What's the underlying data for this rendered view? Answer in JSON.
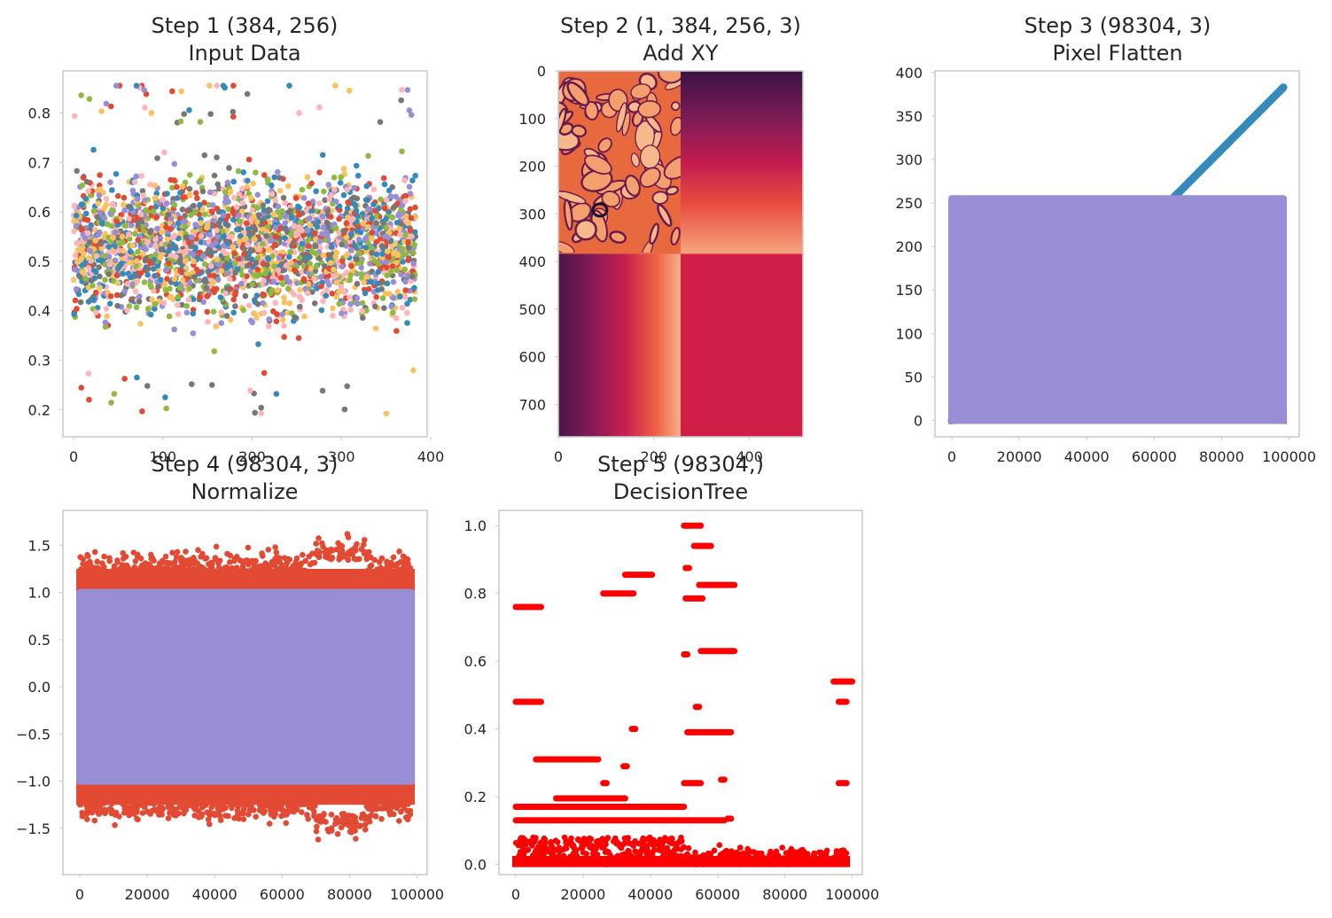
{
  "figure": {
    "background": "#ffffff",
    "frame_color": "#cccccc"
  },
  "chart_data": [
    {
      "id": "p1",
      "type": "scatter",
      "title_line1": "Step 1 (384, 256)",
      "title_line2": "Input Data",
      "xlabel": "",
      "ylabel": "",
      "xlim": [
        -12,
        396
      ],
      "ylim": [
        0.145,
        0.885
      ],
      "xticks": [
        0,
        100,
        200,
        300,
        400
      ],
      "xtick_labels": [
        "0",
        "100",
        "200",
        "300",
        "400"
      ],
      "yticks": [
        0.2,
        0.3,
        0.4,
        0.5,
        0.6,
        0.7,
        0.8
      ],
      "ytick_labels": [
        "0.2",
        "0.3",
        "0.4",
        "0.5",
        "0.6",
        "0.7",
        "0.8"
      ],
      "grid": false,
      "series_colors": [
        "#E24A33",
        "#348ABD",
        "#988ED5",
        "#777777",
        "#FBC15E",
        "#8EBA42",
        "#FFB5B8"
      ],
      "x_range": [
        0,
        383
      ],
      "band_center": 0.53,
      "band_halfwidth": 0.22,
      "min_value": 0.18,
      "max_value": 0.855
    },
    {
      "id": "p2",
      "type": "heatmap",
      "title_line1": "Step 2 (1, 384, 256, 3)",
      "title_line2": "Add XY",
      "xlabel": "",
      "ylabel": "",
      "xlim": [
        0,
        512
      ],
      "ylim": [
        768,
        0
      ],
      "xticks": [
        0,
        200,
        400
      ],
      "xtick_labels": [
        "0",
        "200",
        "400"
      ],
      "yticks": [
        0,
        100,
        200,
        300,
        400,
        500,
        600,
        700
      ],
      "ytick_labels": [
        "0",
        "100",
        "200",
        "300",
        "400",
        "500",
        "600",
        "700"
      ],
      "colormap": "rocket",
      "colormap_stops": [
        "#1f0c2e",
        "#5d1a4f",
        "#a11a5b",
        "#d8284b",
        "#ef6b47",
        "#f8a77a",
        "#fbdcc2"
      ],
      "quadrants": [
        {
          "name": "input-image",
          "rows": [
            0,
            384
          ],
          "cols": [
            0,
            256
          ]
        },
        {
          "name": "y-gradient",
          "rows": [
            0,
            384
          ],
          "cols": [
            256,
            512
          ]
        },
        {
          "name": "x-gradient",
          "rows": [
            384,
            768
          ],
          "cols": [
            0,
            256
          ]
        },
        {
          "name": "constant",
          "rows": [
            384,
            768
          ],
          "cols": [
            256,
            512
          ],
          "color": "#d01e48"
        }
      ]
    },
    {
      "id": "p3",
      "type": "scatter",
      "title_line1": "Step 3 (98304, 3)",
      "title_line2": "Pixel Flatten",
      "xlabel": "",
      "ylabel": "",
      "xlim": [
        -5000,
        103000
      ],
      "ylim": [
        -19,
        402
      ],
      "xticks": [
        0,
        20000,
        40000,
        60000,
        80000,
        100000
      ],
      "xtick_labels": [
        "0",
        "20000",
        "40000",
        "60000",
        "80000",
        "100000"
      ],
      "yticks": [
        0,
        50,
        100,
        150,
        200,
        250,
        300,
        350,
        400
      ],
      "ytick_labels": [
        "0",
        "50",
        "100",
        "150",
        "200",
        "250",
        "300",
        "350",
        "400"
      ],
      "grid": false,
      "series": [
        {
          "name": "",
          "color": "#E24A33",
          "x_range": [
            0,
            98303
          ],
          "y_range": [
            0,
            1
          ]
        },
        {
          "name": "",
          "color": "#348ABD",
          "x_range": [
            0,
            98303
          ],
          "y_range": [
            0,
            383
          ]
        },
        {
          "name": "",
          "color": "#988ED5",
          "x_range": [
            0,
            98303
          ],
          "y_range": [
            0,
            255
          ]
        }
      ]
    },
    {
      "id": "p4",
      "type": "scatter",
      "title_line1": "Step 4 (98304, 3)",
      "title_line2": "Normalize",
      "xlabel": "",
      "ylabel": "",
      "xlim": [
        -5000,
        103000
      ],
      "ylim": [
        -1.99,
        1.87
      ],
      "xticks": [
        0,
        20000,
        40000,
        60000,
        80000,
        100000
      ],
      "xtick_labels": [
        "0",
        "20000",
        "40000",
        "60000",
        "80000",
        "100000"
      ],
      "yticks": [
        -1.5,
        -1.0,
        -0.5,
        0.0,
        0.5,
        1.0,
        1.5
      ],
      "ytick_labels": [
        "−1.5",
        "−1.0",
        "−0.5",
        "0.0",
        "0.5",
        "1.0",
        "1.5"
      ],
      "grid": false,
      "series": [
        {
          "name": "",
          "color": "#E24A33",
          "x_range": [
            0,
            98303
          ],
          "y_range": [
            -1.82,
            1.68
          ]
        },
        {
          "name": "",
          "color": "#348ABD",
          "x_range": [
            0,
            98303
          ],
          "y_range": [
            -1.0,
            1.0
          ]
        },
        {
          "name": "",
          "color": "#988ED5",
          "x_range": [
            0,
            98303
          ],
          "y_range": [
            -1.0,
            1.0
          ]
        }
      ]
    },
    {
      "id": "p5",
      "type": "scatter",
      "title_line1": "Step 5 (98304,)",
      "title_line2": "DecisionTree",
      "xlabel": "",
      "ylabel": "",
      "xlim": [
        -5000,
        103000
      ],
      "ylim": [
        -0.03,
        1.045
      ],
      "xticks": [
        0,
        20000,
        40000,
        60000,
        80000,
        100000
      ],
      "xtick_labels": [
        "0",
        "20000",
        "40000",
        "60000",
        "80000",
        "100000"
      ],
      "yticks": [
        0.0,
        0.2,
        0.4,
        0.6,
        0.8,
        1.0
      ],
      "ytick_labels": [
        "0.0",
        "0.2",
        "0.4",
        "0.6",
        "0.8",
        "1.0"
      ],
      "grid": false,
      "color": "#ff0000",
      "segments": [
        [
          0,
          7500,
          0.76
        ],
        [
          0,
          7500,
          0.48
        ],
        [
          6000,
          24500,
          0.31
        ],
        [
          12000,
          32500,
          0.195
        ],
        [
          0,
          50000,
          0.17
        ],
        [
          0,
          62000,
          0.13
        ],
        [
          26000,
          35000,
          0.8
        ],
        [
          32500,
          40500,
          0.855
        ],
        [
          50500,
          51500,
          0.875
        ],
        [
          50000,
          53000,
          1.0
        ],
        [
          53500,
          55000,
          1.0
        ],
        [
          53000,
          58000,
          0.94
        ],
        [
          50500,
          55500,
          0.785
        ],
        [
          54500,
          65000,
          0.825
        ],
        [
          55000,
          65000,
          0.63
        ],
        [
          50000,
          51000,
          0.62
        ],
        [
          51000,
          64000,
          0.39
        ],
        [
          94500,
          100000,
          0.54
        ],
        [
          96000,
          98300,
          0.48
        ],
        [
          96000,
          98300,
          0.24
        ],
        [
          50000,
          55000,
          0.24
        ],
        [
          32000,
          33000,
          0.29
        ],
        [
          26000,
          27000,
          0.24
        ],
        [
          34500,
          35500,
          0.4
        ],
        [
          53500,
          54500,
          0.465
        ],
        [
          63000,
          64000,
          0.135
        ],
        [
          61000,
          62000,
          0.25
        ]
      ],
      "dense_band": [
        0,
        0.08
      ]
    }
  ]
}
